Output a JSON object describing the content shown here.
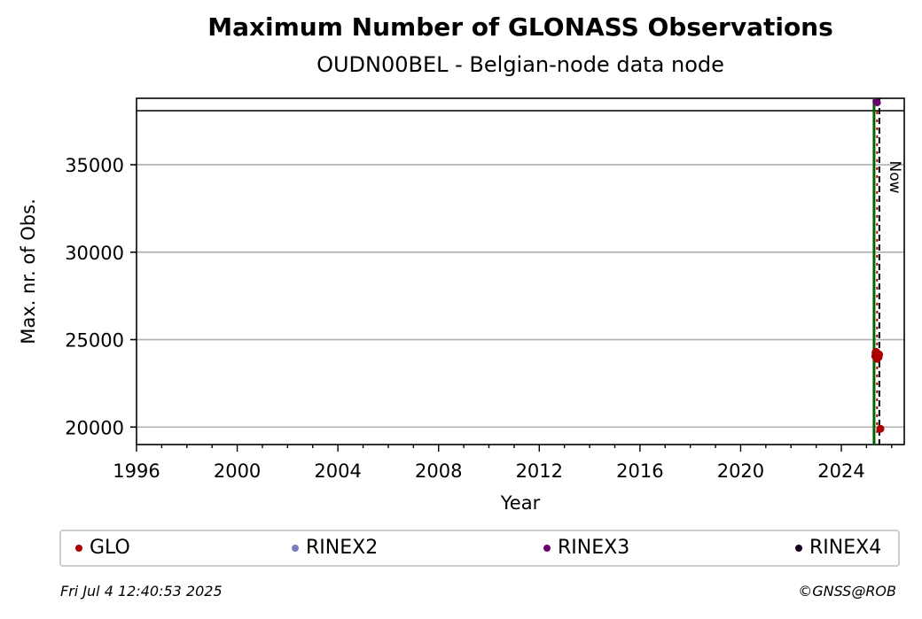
{
  "chart_data": {
    "type": "scatter",
    "title": "Maximum Number of GLONASS Observations",
    "subtitle": "OUDN00BEL - Belgian-node data node",
    "xlabel": "Year",
    "ylabel": "Max. nr. of Obs.",
    "xlim": [
      1996,
      2026.5
    ],
    "ylim": [
      19000,
      38800
    ],
    "x_ticks": [
      1996,
      2000,
      2004,
      2008,
      2012,
      2016,
      2020,
      2024
    ],
    "y_ticks": [
      20000,
      25000,
      30000,
      35000
    ],
    "grid": "horizontal",
    "reference_lines": [
      {
        "label": "Now",
        "x": 2025.51,
        "style": "dashed",
        "color": "#000000"
      }
    ],
    "vertical_lines": [
      {
        "x": 2025.3,
        "color": "#006400"
      }
    ],
    "series": [
      {
        "name": "GLO",
        "color": "#aa0000",
        "points": [
          [
            2025.35,
            24050
          ],
          [
            2025.4,
            24200
          ],
          [
            2025.45,
            24100
          ],
          [
            2025.38,
            24300
          ],
          [
            2025.48,
            24000
          ],
          [
            2025.42,
            23900
          ],
          [
            2025.5,
            24150
          ],
          [
            2025.55,
            19900
          ],
          [
            2025.36,
            24250
          ],
          [
            2025.46,
            24050
          ]
        ]
      },
      {
        "name": "RINEX2",
        "color": "#7b7bbf",
        "points": []
      },
      {
        "name": "RINEX3",
        "color": "#6a006a",
        "points": [
          [
            2025.38,
            38600
          ],
          [
            2025.43,
            38550
          ]
        ]
      },
      {
        "name": "RINEX4",
        "color": "#1a0020",
        "points": []
      }
    ],
    "legend_placement": "bottom"
  },
  "footer": {
    "timestamp": "Fri Jul  4 12:40:53 2025",
    "credit": "©GNSS@ROB"
  }
}
